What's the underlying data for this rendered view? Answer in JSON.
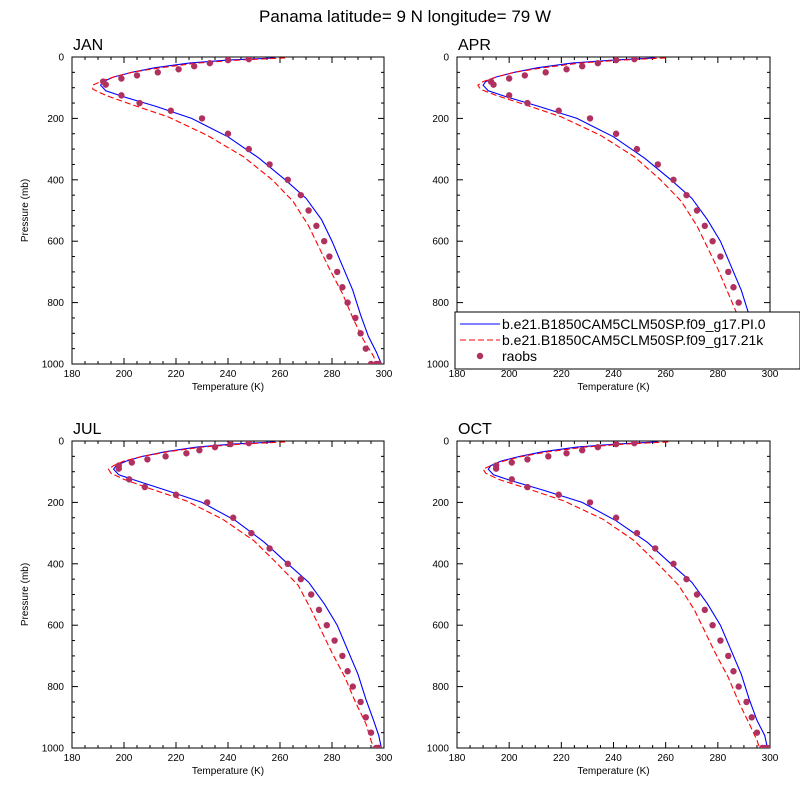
{
  "figure": {
    "title": "Panama  latitude= 9 N longitude= 79 W"
  },
  "legend": {
    "placement": "right-middle",
    "entries": [
      {
        "label": "b.e21.B1850CAM5CLM50SP.f09_g17.PI.0",
        "color": "#0000ff",
        "style": "solid"
      },
      {
        "label": "b.e21.B1850CAM5CLM50SP.f09_g17.21k",
        "color": "#ff0000",
        "style": "dashed"
      },
      {
        "label": "raobs",
        "color": "#b03060",
        "style": "marker"
      }
    ]
  },
  "chart_data": [
    {
      "type": "line",
      "title": "JAN",
      "xlabel": "Temperature (K)",
      "ylabel": "Pressure (mb)",
      "xlim": [
        180,
        300
      ],
      "ylim": [
        1000,
        0
      ],
      "xticks": [
        "180",
        "200",
        "220",
        "240",
        "260",
        "280",
        "300"
      ],
      "yticks": [
        "0",
        "200",
        "400",
        "600",
        "800",
        "1000"
      ],
      "series": [
        {
          "name": "b.e21.B1850CAM5CLM50SP.f09_g17.PI.0",
          "color": "#0000ff",
          "style": "solid",
          "x": [
            258,
            240,
            225,
            212,
            203,
            196,
            192,
            191,
            193,
            200,
            212,
            226,
            240,
            252,
            262,
            270,
            276,
            280,
            284,
            288,
            291,
            294,
            297,
            299
          ],
          "y": [
            3,
            10,
            20,
            35,
            50,
            65,
            80,
            92,
            110,
            130,
            160,
            200,
            260,
            330,
            400,
            460,
            530,
            600,
            680,
            760,
            840,
            910,
            960,
            1000
          ]
        },
        {
          "name": "b.e21.B1850CAM5CLM50SP.f09_g17.21k",
          "color": "#ff0000",
          "style": "dashed",
          "x": [
            262,
            244,
            228,
            214,
            203,
            196,
            191,
            188,
            188,
            193,
            203,
            217,
            232,
            246,
            257,
            265,
            271,
            275,
            279,
            284,
            288,
            292,
            296,
            297
          ],
          "y": [
            3,
            10,
            20,
            35,
            50,
            65,
            80,
            92,
            105,
            125,
            155,
            195,
            255,
            325,
            400,
            470,
            550,
            620,
            690,
            770,
            850,
            920,
            975,
            1000
          ]
        },
        {
          "name": "raobs",
          "color": "#b03060",
          "style": "marker",
          "x": [
            248,
            240,
            233,
            227,
            221,
            213,
            205,
            199,
            192,
            193,
            199,
            206,
            218,
            230,
            240,
            248,
            256,
            263,
            268,
            271,
            274,
            277,
            279,
            282,
            284,
            286,
            289,
            291,
            293,
            295,
            297,
            298
          ],
          "y": [
            7,
            10,
            20,
            30,
            40,
            50,
            60,
            70,
            80,
            90,
            125,
            150,
            175,
            200,
            250,
            300,
            350,
            400,
            450,
            500,
            550,
            600,
            650,
            700,
            750,
            800,
            850,
            900,
            950,
            1000,
            1000,
            1000
          ]
        }
      ]
    },
    {
      "type": "line",
      "title": "APR",
      "xlabel": "Temperature (K)",
      "ylabel": "",
      "xlim": [
        180,
        300
      ],
      "ylim": [
        1000,
        0
      ],
      "xticks": [
        "180",
        "200",
        "220",
        "240",
        "260",
        "280",
        "300"
      ],
      "yticks": [
        "0",
        "200",
        "400",
        "600",
        "800",
        "1000"
      ],
      "series": [
        {
          "name": "b.e21.B1850CAM5CLM50SP.f09_g17.PI.0",
          "color": "#0000ff",
          "style": "solid",
          "x": [
            256,
            240,
            224,
            211,
            202,
            195,
            191,
            190,
            192,
            199,
            211,
            226,
            240,
            252,
            262,
            270,
            276,
            281,
            285,
            289,
            292,
            295,
            298,
            300
          ],
          "y": [
            3,
            10,
            20,
            35,
            50,
            65,
            80,
            92,
            110,
            130,
            160,
            200,
            260,
            330,
            400,
            460,
            530,
            600,
            680,
            760,
            840,
            910,
            960,
            1000
          ]
        },
        {
          "name": "b.e21.B1850CAM5CLM50SP.f09_g17.21k",
          "color": "#ff0000",
          "style": "dashed",
          "x": [
            260,
            243,
            227,
            213,
            202,
            195,
            190,
            188,
            189,
            195,
            206,
            220,
            235,
            248,
            258,
            266,
            272,
            276,
            280,
            284,
            288,
            292,
            295,
            296
          ],
          "y": [
            3,
            10,
            20,
            35,
            50,
            65,
            80,
            92,
            105,
            125,
            155,
            195,
            255,
            325,
            400,
            470,
            550,
            620,
            690,
            770,
            850,
            920,
            975,
            1000
          ]
        },
        {
          "name": "raobs",
          "color": "#b03060",
          "style": "marker",
          "x": [
            248,
            241,
            234,
            228,
            222,
            214,
            206,
            200,
            193,
            194,
            200,
            207,
            219,
            231,
            241,
            249,
            257,
            263,
            268,
            272,
            275,
            278,
            281,
            284,
            286,
            288,
            291,
            292,
            294,
            296,
            298,
            299
          ],
          "y": [
            7,
            10,
            20,
            30,
            40,
            50,
            60,
            70,
            80,
            90,
            125,
            150,
            175,
            200,
            250,
            300,
            350,
            400,
            450,
            500,
            550,
            600,
            650,
            700,
            750,
            800,
            850,
            900,
            950,
            1000,
            1000,
            1000
          ]
        }
      ]
    },
    {
      "type": "line",
      "title": "JUL",
      "xlabel": "Temperature (K)",
      "ylabel": "Pressure (mb)",
      "xlim": [
        180,
        300
      ],
      "ylim": [
        1000,
        0
      ],
      "xticks": [
        "180",
        "200",
        "220",
        "240",
        "260",
        "280",
        "300"
      ],
      "yticks": [
        "0",
        "200",
        "400",
        "600",
        "800",
        "1000"
      ],
      "series": [
        {
          "name": "b.e21.B1850CAM5CLM50SP.f09_g17.PI.0",
          "color": "#0000ff",
          "style": "solid",
          "x": [
            258,
            242,
            228,
            216,
            207,
            201,
            197,
            196,
            198,
            205,
            216,
            230,
            243,
            254,
            263,
            271,
            277,
            282,
            286,
            290,
            293,
            296,
            298,
            299
          ],
          "y": [
            3,
            10,
            20,
            35,
            50,
            65,
            80,
            92,
            110,
            130,
            160,
            200,
            260,
            330,
            400,
            460,
            530,
            600,
            680,
            760,
            840,
            910,
            960,
            1000
          ]
        },
        {
          "name": "b.e21.B1850CAM5CLM50SP.f09_g17.21k",
          "color": "#ff0000",
          "style": "dashed",
          "x": [
            262,
            245,
            230,
            217,
            207,
            200,
            196,
            194,
            195,
            200,
            210,
            224,
            238,
            250,
            259,
            267,
            272,
            276,
            280,
            285,
            289,
            293,
            295,
            296
          ],
          "y": [
            3,
            10,
            20,
            35,
            50,
            65,
            80,
            92,
            105,
            125,
            155,
            195,
            255,
            325,
            400,
            470,
            550,
            620,
            690,
            770,
            850,
            920,
            975,
            1000
          ]
        },
        {
          "name": "raobs",
          "color": "#b03060",
          "style": "marker",
          "x": [
            248,
            241,
            235,
            229,
            224,
            216,
            209,
            203,
            198,
            198,
            202,
            208,
            220,
            232,
            242,
            249,
            256,
            263,
            268,
            272,
            275,
            278,
            281,
            284,
            286,
            288,
            291,
            293,
            295,
            297,
            298,
            298
          ],
          "y": [
            7,
            10,
            20,
            30,
            40,
            50,
            60,
            70,
            80,
            90,
            125,
            150,
            175,
            200,
            250,
            300,
            350,
            400,
            450,
            500,
            550,
            600,
            650,
            700,
            750,
            800,
            850,
            900,
            950,
            1000,
            1000,
            1000
          ]
        }
      ]
    },
    {
      "type": "line",
      "title": "OCT",
      "xlabel": "Temperature (K)",
      "ylabel": "",
      "xlim": [
        180,
        300
      ],
      "ylim": [
        1000,
        0
      ],
      "xticks": [
        "180",
        "200",
        "220",
        "240",
        "260",
        "280",
        "300"
      ],
      "yticks": [
        "0",
        "200",
        "400",
        "600",
        "800",
        "1000"
      ],
      "series": [
        {
          "name": "b.e21.B1850CAM5CLM50SP.f09_g17.PI.0",
          "color": "#0000ff",
          "style": "solid",
          "x": [
            257,
            241,
            226,
            213,
            204,
            197,
            193,
            192,
            194,
            201,
            213,
            228,
            241,
            253,
            262,
            270,
            276,
            281,
            285,
            289,
            292,
            295,
            298,
            299
          ],
          "y": [
            3,
            10,
            20,
            35,
            50,
            65,
            80,
            92,
            110,
            130,
            160,
            200,
            260,
            330,
            400,
            460,
            530,
            600,
            680,
            760,
            840,
            910,
            960,
            1000
          ]
        },
        {
          "name": "b.e21.B1850CAM5CLM50SP.f09_g17.21k",
          "color": "#ff0000",
          "style": "dashed",
          "x": [
            261,
            244,
            229,
            215,
            205,
            198,
            193,
            190,
            191,
            196,
            207,
            221,
            236,
            248,
            257,
            265,
            271,
            275,
            279,
            284,
            288,
            292,
            295,
            296
          ],
          "y": [
            3,
            10,
            20,
            35,
            50,
            65,
            80,
            92,
            105,
            125,
            155,
            195,
            255,
            325,
            400,
            470,
            550,
            620,
            690,
            770,
            850,
            920,
            975,
            1000
          ]
        },
        {
          "name": "raobs",
          "color": "#b03060",
          "style": "marker",
          "x": [
            248,
            241,
            234,
            228,
            222,
            215,
            207,
            201,
            195,
            195,
            201,
            207,
            219,
            231,
            241,
            249,
            256,
            263,
            268,
            272,
            275,
            278,
            281,
            284,
            286,
            288,
            291,
            293,
            295,
            297,
            298,
            299
          ],
          "y": [
            7,
            10,
            20,
            30,
            40,
            50,
            60,
            70,
            80,
            90,
            125,
            150,
            175,
            200,
            250,
            300,
            350,
            400,
            450,
            500,
            550,
            600,
            650,
            700,
            750,
            800,
            850,
            900,
            950,
            1000,
            1000,
            1000
          ]
        }
      ]
    }
  ]
}
